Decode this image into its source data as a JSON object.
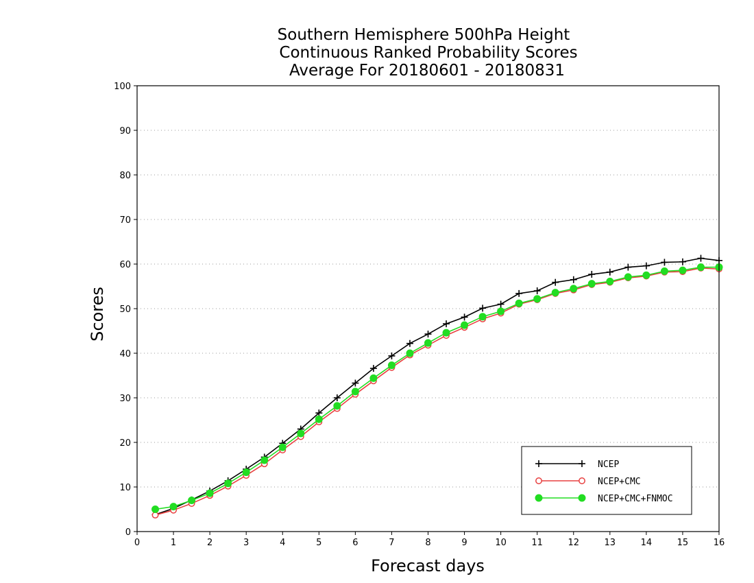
{
  "chart_data": {
    "type": "line",
    "title": [
      "Southern Hemisphere 500hPa Height",
      "Continuous Ranked Probability Scores",
      "Average For 20180601 - 20180831"
    ],
    "xlabel": "Forecast days",
    "ylabel": "Scores",
    "xlim": [
      0,
      16
    ],
    "ylim": [
      0,
      100
    ],
    "xticks": [
      "0",
      "1",
      "2",
      "3",
      "4",
      "5",
      "6",
      "7",
      "8",
      "9",
      "10",
      "11",
      "12",
      "13",
      "14",
      "15",
      "16"
    ],
    "yticks": [
      "0",
      "10",
      "20",
      "30",
      "40",
      "50",
      "60",
      "70",
      "80",
      "90",
      "100"
    ],
    "grid": "horizontal dotted",
    "legend_position": "bottom-right",
    "x": [
      0.5,
      1,
      1.5,
      2,
      2.5,
      3,
      3.5,
      4,
      4.5,
      5,
      5.5,
      6,
      6.5,
      7,
      7.5,
      8,
      8.5,
      9,
      9.5,
      10,
      10.5,
      11,
      11.5,
      12,
      12.5,
      13,
      13.5,
      14,
      14.5,
      15,
      15.5,
      16
    ],
    "series": [
      {
        "name": "NCEP",
        "color": "#000000",
        "marker": "plus",
        "values": [
          3.8,
          5.2,
          7.1,
          9.1,
          11.4,
          14.0,
          16.7,
          19.8,
          23.0,
          26.6,
          30.0,
          33.3,
          36.6,
          39.4,
          42.2,
          44.3,
          46.6,
          48.1,
          50.1,
          51.0,
          53.4,
          54.0,
          55.9,
          56.5,
          57.7,
          58.2,
          59.3,
          59.6,
          60.4,
          60.5,
          61.3,
          60.8
        ]
      },
      {
        "name": "NCEP+CMC",
        "color": "#e84040",
        "marker": "open-circle",
        "values": [
          3.7,
          4.8,
          6.3,
          8.1,
          10.2,
          12.6,
          15.2,
          18.3,
          21.3,
          24.6,
          27.6,
          30.8,
          33.8,
          36.8,
          39.6,
          41.8,
          44.0,
          45.8,
          47.7,
          49.0,
          51.0,
          52.0,
          53.4,
          54.2,
          55.4,
          55.9,
          56.9,
          57.3,
          58.2,
          58.3,
          59.1,
          58.9
        ]
      },
      {
        "name": "NCEP+CMC+FNMOC",
        "color": "#22dd22",
        "marker": "filled-circle",
        "values": [
          5.0,
          5.6,
          7.0,
          8.6,
          10.8,
          13.3,
          16.0,
          18.9,
          22.0,
          25.2,
          28.2,
          31.4,
          34.4,
          37.3,
          40.0,
          42.3,
          44.6,
          46.3,
          48.2,
          49.4,
          51.2,
          52.2,
          53.6,
          54.5,
          55.6,
          56.1,
          57.1,
          57.5,
          58.4,
          58.6,
          59.3,
          59.3
        ]
      }
    ]
  }
}
